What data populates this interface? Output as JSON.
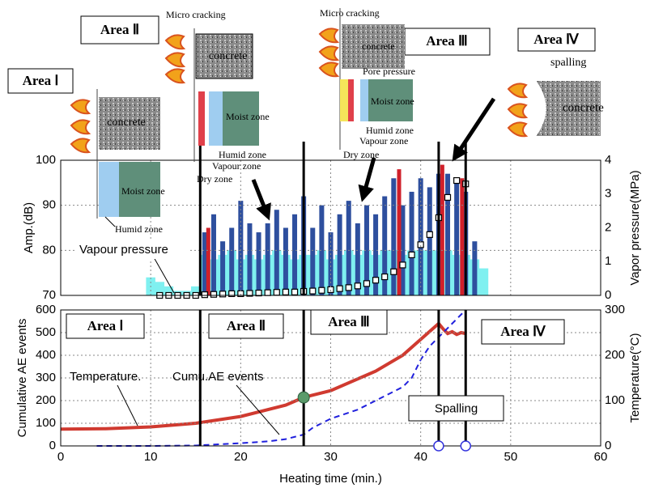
{
  "chart_data": [
    {
      "type": "combo",
      "ylabel": "Amp.(dB)",
      "y2label": "Vapor pressure(MPa)",
      "xlim": [
        0,
        60
      ],
      "xticks": [
        0,
        10,
        20,
        30,
        40,
        50,
        60
      ],
      "xtick_labels": false,
      "ylim": [
        70,
        100
      ],
      "yticks": [
        70,
        80,
        90,
        100
      ],
      "y2lim": [
        0,
        4
      ],
      "y2ticks": [
        0,
        1,
        2,
        3,
        4
      ],
      "grid": true,
      "boundaries": [
        15.5,
        27,
        42,
        45
      ],
      "series": [
        {
          "type": "bar",
          "color": "#7ff0f0",
          "x": [
            10,
            11,
            12,
            13,
            14,
            15,
            16,
            17,
            18,
            19,
            20,
            21,
            22,
            23,
            24,
            25,
            26,
            27,
            28,
            29,
            30,
            31,
            32,
            33,
            34,
            35,
            36,
            37,
            38,
            39,
            40,
            41,
            42,
            43,
            44,
            45,
            46,
            47
          ],
          "values": [
            74,
            73,
            72,
            71,
            71,
            72,
            79,
            78,
            79,
            80,
            78,
            79,
            78,
            79,
            80,
            79,
            78,
            79,
            79,
            80,
            78,
            79,
            80,
            79,
            80,
            79,
            80,
            80,
            79,
            80,
            80,
            80,
            80,
            80,
            79,
            79,
            78,
            76
          ]
        },
        {
          "type": "bar",
          "color": "#2e4f9e",
          "x": [
            16,
            17,
            18,
            19,
            20,
            21,
            22,
            23,
            24,
            25,
            26,
            27,
            28,
            29,
            30,
            31,
            32,
            33,
            34,
            35,
            36,
            37,
            38,
            39,
            40,
            41,
            42,
            43,
            44,
            45,
            46
          ],
          "values": [
            84,
            88,
            82,
            85,
            91,
            86,
            84,
            86,
            89,
            85,
            88,
            92,
            85,
            90,
            84,
            88,
            91,
            86,
            90,
            88,
            92,
            96,
            90,
            93,
            96,
            94,
            97,
            97,
            96,
            93,
            82
          ]
        },
        {
          "type": "bar",
          "color": "#d0202a",
          "x": [
            16.4,
            37.6,
            42.4,
            44.6
          ],
          "values": [
            85,
            98,
            99,
            96
          ]
        },
        {
          "type": "line",
          "name": "Vapour pressure",
          "axis": "y2",
          "color": "#000000",
          "x": [
            11,
            12,
            13,
            14,
            15,
            16,
            17,
            18,
            19,
            20,
            21,
            22,
            23,
            24,
            25,
            26,
            27,
            28,
            29,
            30,
            31,
            32,
            33,
            34,
            35,
            36,
            37,
            38,
            39,
            40,
            41,
            42,
            43,
            44,
            45
          ],
          "values": [
            0,
            0,
            0,
            0,
            0,
            0.02,
            0.03,
            0.04,
            0.05,
            0.05,
            0.06,
            0.07,
            0.08,
            0.09,
            0.1,
            0.1,
            0.12,
            0.13,
            0.15,
            0.17,
            0.2,
            0.23,
            0.28,
            0.35,
            0.45,
            0.55,
            0.7,
            0.9,
            1.2,
            1.5,
            1.8,
            2.3,
            2.9,
            3.4,
            3.3
          ]
        }
      ]
    },
    {
      "type": "combo",
      "xlabel": "Heating time (min.)",
      "ylabel": "Cumulative AE events",
      "y2label": "Temperature(°C)",
      "xlim": [
        0,
        60
      ],
      "xticks": [
        0,
        10,
        20,
        30,
        40,
        50,
        60
      ],
      "xtick_labels": true,
      "ylim": [
        0,
        600
      ],
      "yticks": [
        0,
        100,
        200,
        300,
        400,
        500,
        600
      ],
      "y2lim": [
        0,
        300
      ],
      "y2ticks": [
        0,
        100,
        200,
        300
      ],
      "grid": true,
      "boundaries": [
        15.5,
        27,
        42,
        45
      ],
      "series": [
        {
          "type": "line",
          "name": "Temperature.",
          "axis": "y2",
          "color": "#d03a30",
          "x": [
            0,
            5,
            10,
            15,
            20,
            25,
            27,
            30,
            35,
            38,
            40,
            42,
            42.5,
            43,
            43.5,
            44,
            44.5,
            45
          ],
          "values": [
            37,
            38,
            42,
            50,
            65,
            90,
            107,
            122,
            165,
            200,
            235,
            270,
            258,
            248,
            252,
            246,
            250,
            248
          ]
        },
        {
          "type": "line",
          "name": "Cumu.AE events",
          "color": "#2020dd",
          "dashed": true,
          "x": [
            4,
            10,
            15,
            18,
            20,
            23,
            25,
            27,
            28,
            30,
            33,
            35,
            37,
            38,
            39,
            40,
            41,
            42,
            43,
            44,
            45
          ],
          "values": [
            0,
            0,
            2,
            8,
            12,
            20,
            30,
            50,
            80,
            120,
            160,
            200,
            240,
            260,
            300,
            380,
            440,
            480,
            520,
            560,
            600
          ]
        }
      ],
      "annotations": [
        "Area Ⅰ",
        "Area Ⅱ",
        "Area Ⅲ",
        "Area Ⅳ",
        "Spalling"
      ]
    }
  ],
  "diagrams": [
    {
      "title": "Area Ⅰ",
      "labels": [
        "concrete",
        "Moist zone",
        "Humid zone"
      ]
    },
    {
      "title": "Area Ⅱ",
      "labels": [
        "Micro cracking",
        "concrete",
        "Moist zone",
        "Humid zone",
        "Vapour zone",
        "Dry zone"
      ]
    },
    {
      "title": "Area Ⅲ",
      "labels": [
        "Micro cracking",
        "concrete",
        "Pore pressure",
        "Moist zone",
        "Humid zone",
        "Vapour zone",
        "Dry zone"
      ]
    },
    {
      "title": "Area Ⅳ",
      "labels": [
        "spalling",
        "concrete"
      ]
    }
  ]
}
